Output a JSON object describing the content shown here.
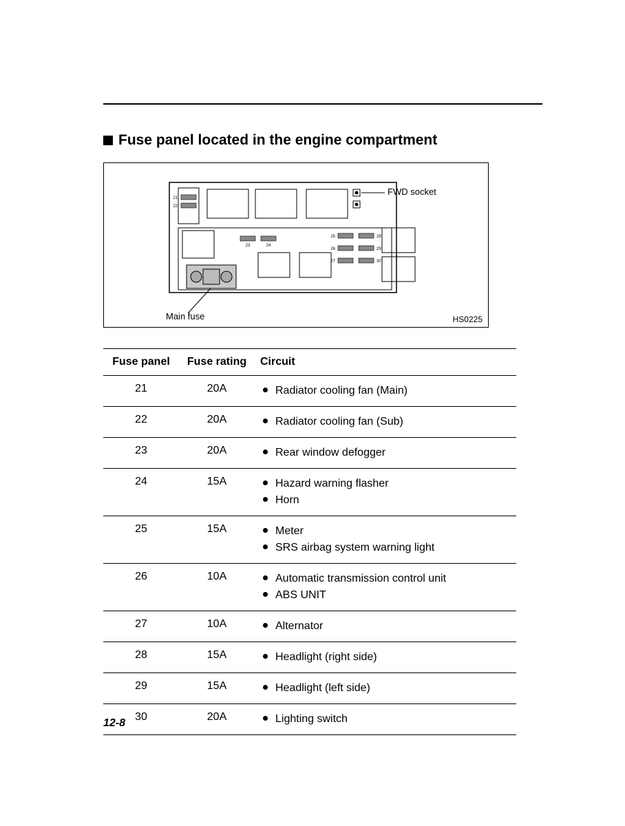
{
  "title": "Fuse panel located in the engine compartment",
  "diagram": {
    "fwd_socket_label": "FWD socket",
    "main_fuse_label": "Main fuse",
    "ref_code": "HS0225",
    "fuse_ids": [
      "21",
      "22",
      "23",
      "24",
      "25",
      "26",
      "27",
      "28",
      "29",
      "30"
    ]
  },
  "table": {
    "headers": {
      "panel": "Fuse panel",
      "rating": "Fuse rating",
      "circuit": "Circuit"
    },
    "rows": [
      {
        "panel": "21",
        "rating": "20A",
        "circuits": [
          "Radiator cooling fan (Main)"
        ]
      },
      {
        "panel": "22",
        "rating": "20A",
        "circuits": [
          "Radiator cooling fan (Sub)"
        ]
      },
      {
        "panel": "23",
        "rating": "20A",
        "circuits": [
          "Rear window defogger"
        ]
      },
      {
        "panel": "24",
        "rating": "15A",
        "circuits": [
          "Hazard warning flasher",
          "Horn"
        ]
      },
      {
        "panel": "25",
        "rating": "15A",
        "circuits": [
          "Meter",
          "SRS airbag system warning light"
        ]
      },
      {
        "panel": "26",
        "rating": "10A",
        "circuits": [
          "Automatic transmission control unit",
          "ABS UNIT"
        ]
      },
      {
        "panel": "27",
        "rating": "10A",
        "circuits": [
          "Alternator"
        ]
      },
      {
        "panel": "28",
        "rating": "15A",
        "circuits": [
          "Headlight (right side)"
        ]
      },
      {
        "panel": "29",
        "rating": "15A",
        "circuits": [
          "Headlight (left side)"
        ]
      },
      {
        "panel": "30",
        "rating": "20A",
        "circuits": [
          "Lighting switch"
        ]
      }
    ]
  },
  "page_number": "12-8",
  "colors": {
    "text": "#000000",
    "background": "#ffffff",
    "rule": "#000000"
  },
  "typography": {
    "title_fontsize": 21,
    "body_fontsize": 16,
    "label_fontsize": 13
  }
}
